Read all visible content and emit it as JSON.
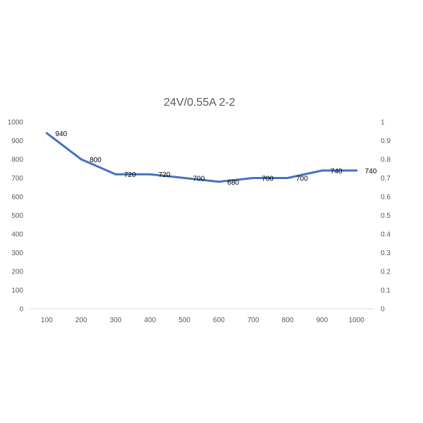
{
  "chart_data": {
    "type": "line",
    "title": "24V/0.55A   2-2",
    "xlabel": "",
    "ylabel": "",
    "categories": [
      "100",
      "200",
      "300",
      "400",
      "500",
      "600",
      "700",
      "800",
      "900",
      "1000"
    ],
    "series": [
      {
        "values": [
          940,
          800,
          720,
          720,
          700,
          680,
          700,
          700,
          740,
          740
        ]
      }
    ],
    "data_labels": [
      "940",
      "800",
      "720",
      "720",
      "700",
      "680",
      "700",
      "700",
      "740",
      "740"
    ],
    "ylim": [
      0,
      1000
    ],
    "y_ticks": [
      "0",
      "100",
      "200",
      "300",
      "400",
      "500",
      "600",
      "700",
      "800",
      "900",
      "1000"
    ],
    "y2lim": [
      0,
      1
    ],
    "y2_ticks": [
      "0",
      "0.1",
      "0.2",
      "0.3",
      "0.4",
      "0.5",
      "0.6",
      "0.7",
      "0.8",
      "0.9",
      "1"
    ],
    "grid": false,
    "legend": "none",
    "line_color": "#4472c4",
    "axis_color": "#d9d9d9",
    "text_color": "#595959"
  }
}
